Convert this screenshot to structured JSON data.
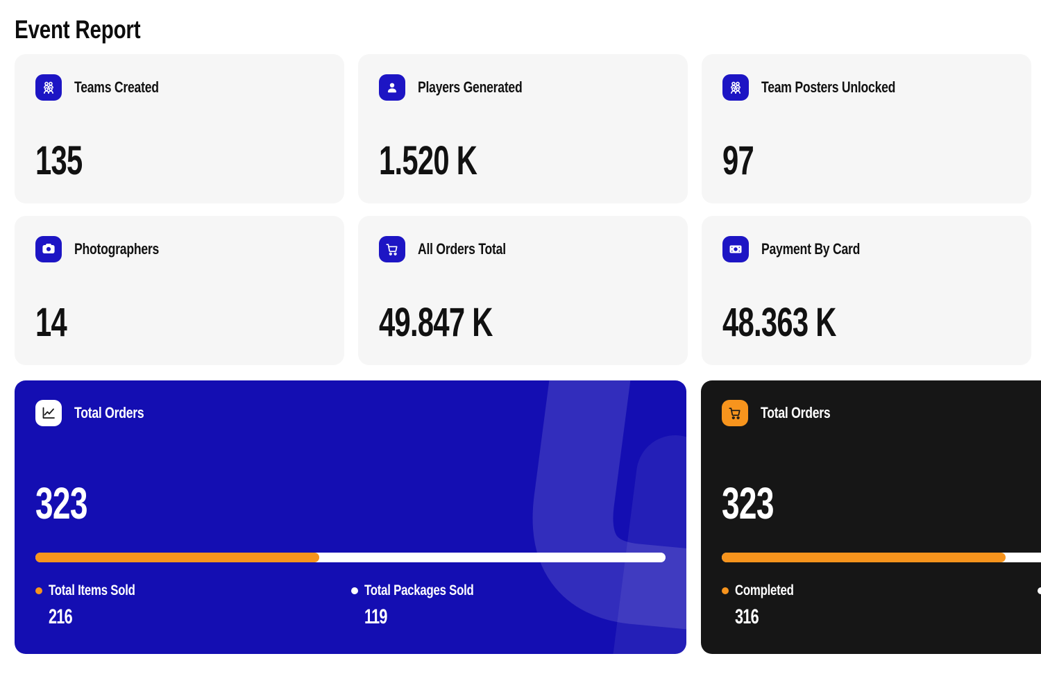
{
  "title": "Event Report",
  "colors": {
    "icon_blue": "#1d15c4",
    "card_blue": "#140eb2",
    "card_dark": "#161616",
    "orange": "#f7941d",
    "stat_card_bg": "#f6f6f6",
    "text": "#111111",
    "white": "#ffffff"
  },
  "stat_cards": [
    {
      "icon": "users-group-icon",
      "label": "Teams Created",
      "value": "135"
    },
    {
      "icon": "user-icon",
      "label": "Players Generated",
      "value": "1.520 K"
    },
    {
      "icon": "users-group-icon",
      "label": "Team Posters Unlocked",
      "value": "97"
    },
    {
      "icon": "camera-icon",
      "label": "Photographers",
      "value": "14"
    },
    {
      "icon": "cart-icon",
      "label": "All Orders Total",
      "value": "49.847 K"
    },
    {
      "icon": "banknote-icon",
      "label": "Payment By Card",
      "value": "48.363 K"
    }
  ],
  "orders_cards": [
    {
      "theme": "blue",
      "icon": "chart-line-icon",
      "label": "Total Orders",
      "value": "323",
      "progress_percent": 45,
      "legend": [
        {
          "dot": "orange",
          "label": "Total Items Sold",
          "value": "216"
        },
        {
          "dot": "white",
          "label": "Total Packages Sold",
          "value": "119"
        }
      ]
    },
    {
      "theme": "dark",
      "icon": "cart-icon",
      "label": "Total Orders",
      "value": "323",
      "progress_percent": 45,
      "legend": [
        {
          "dot": "orange",
          "label": "Completed",
          "value": "316"
        },
        {
          "dot": "white",
          "label": "",
          "value": ""
        }
      ]
    }
  ]
}
